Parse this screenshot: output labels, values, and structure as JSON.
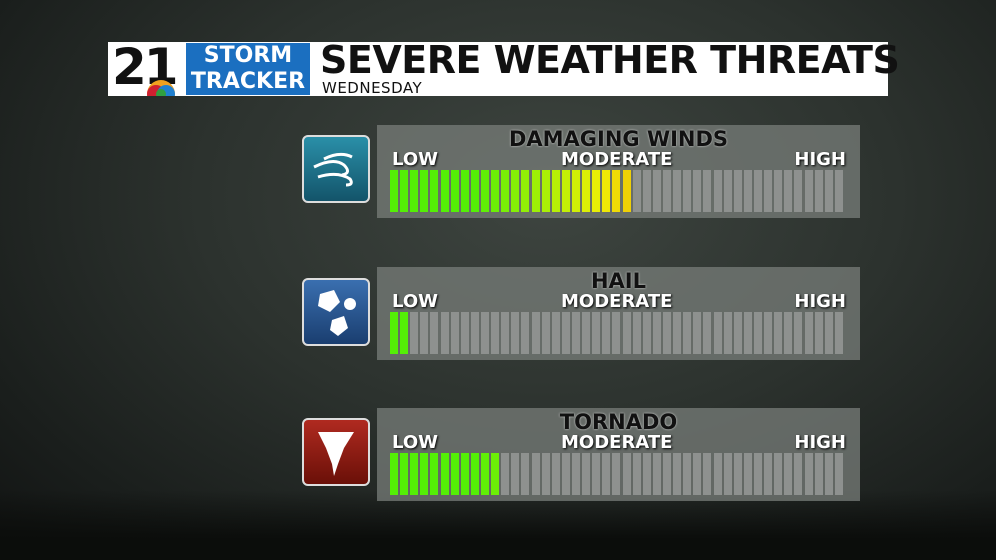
{
  "header": {
    "logo": {
      "number": "21",
      "line1": "STORM",
      "line2": "TRACKER"
    },
    "title": "SEVERE WEATHER THREATS",
    "subtitle": "WEDNESDAY"
  },
  "scale": {
    "low": "LOW",
    "moderate": "MODERATE",
    "high": "HIGH",
    "segments": 45
  },
  "threats": [
    {
      "label": "DAMAGING WINDS",
      "level": 24
    },
    {
      "label": "HAIL",
      "level": 2
    },
    {
      "label": "TORNADO",
      "level": 11
    }
  ]
}
